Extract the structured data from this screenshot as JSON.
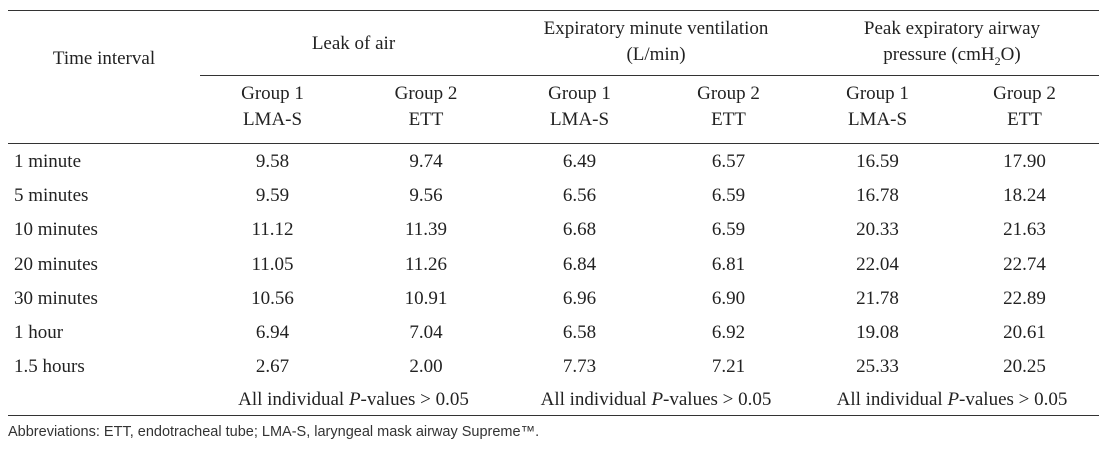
{
  "table": {
    "header": {
      "time_interval": "Time interval",
      "leak_of_air": "Leak of air",
      "emv_line1": "Expiratory minute ventilation",
      "emv_line2": "(L/min)",
      "pea_line1": "Peak expiratory airway",
      "pea_line2_prefix": "pressure (cmH",
      "pea_line2_sub": "2",
      "pea_line2_suffix": "O)",
      "group1": "Group 1",
      "group1_sub": "LMA-S",
      "group2": "Group 2",
      "group2_sub": "ETT"
    },
    "rows": [
      {
        "interval": "1 minute",
        "leak_g1": "9.58",
        "leak_g2": "9.74",
        "emv_g1": "6.49",
        "emv_g2": "6.57",
        "pea_g1": "16.59",
        "pea_g2": "17.90"
      },
      {
        "interval": "5 minutes",
        "leak_g1": "9.59",
        "leak_g2": "9.56",
        "emv_g1": "6.56",
        "emv_g2": "6.59",
        "pea_g1": "16.78",
        "pea_g2": "18.24"
      },
      {
        "interval": "10 minutes",
        "leak_g1": "11.12",
        "leak_g2": "11.39",
        "emv_g1": "6.68",
        "emv_g2": "6.59",
        "pea_g1": "20.33",
        "pea_g2": "21.63"
      },
      {
        "interval": "20 minutes",
        "leak_g1": "11.05",
        "leak_g2": "11.26",
        "emv_g1": "6.84",
        "emv_g2": "6.81",
        "pea_g1": "22.04",
        "pea_g2": "22.74"
      },
      {
        "interval": "30 minutes",
        "leak_g1": "10.56",
        "leak_g2": "10.91",
        "emv_g1": "6.96",
        "emv_g2": "6.90",
        "pea_g1": "21.78",
        "pea_g2": "22.89"
      },
      {
        "interval": "1 hour",
        "leak_g1": "6.94",
        "leak_g2": "7.04",
        "emv_g1": "6.58",
        "emv_g2": "6.92",
        "pea_g1": "19.08",
        "pea_g2": "20.61"
      },
      {
        "interval": "1.5 hours",
        "leak_g1": "2.67",
        "leak_g2": "2.00",
        "emv_g1": "7.73",
        "emv_g2": "7.21",
        "pea_g1": "25.33",
        "pea_g2": "20.25"
      }
    ],
    "pvalue": {
      "prefix": "All individual ",
      "italic": "P",
      "suffix": "-values > 0.05"
    }
  },
  "footnote": "Abbreviations: ETT, endotracheal tube; LMA-S, laryngeal mask airway Supreme™."
}
